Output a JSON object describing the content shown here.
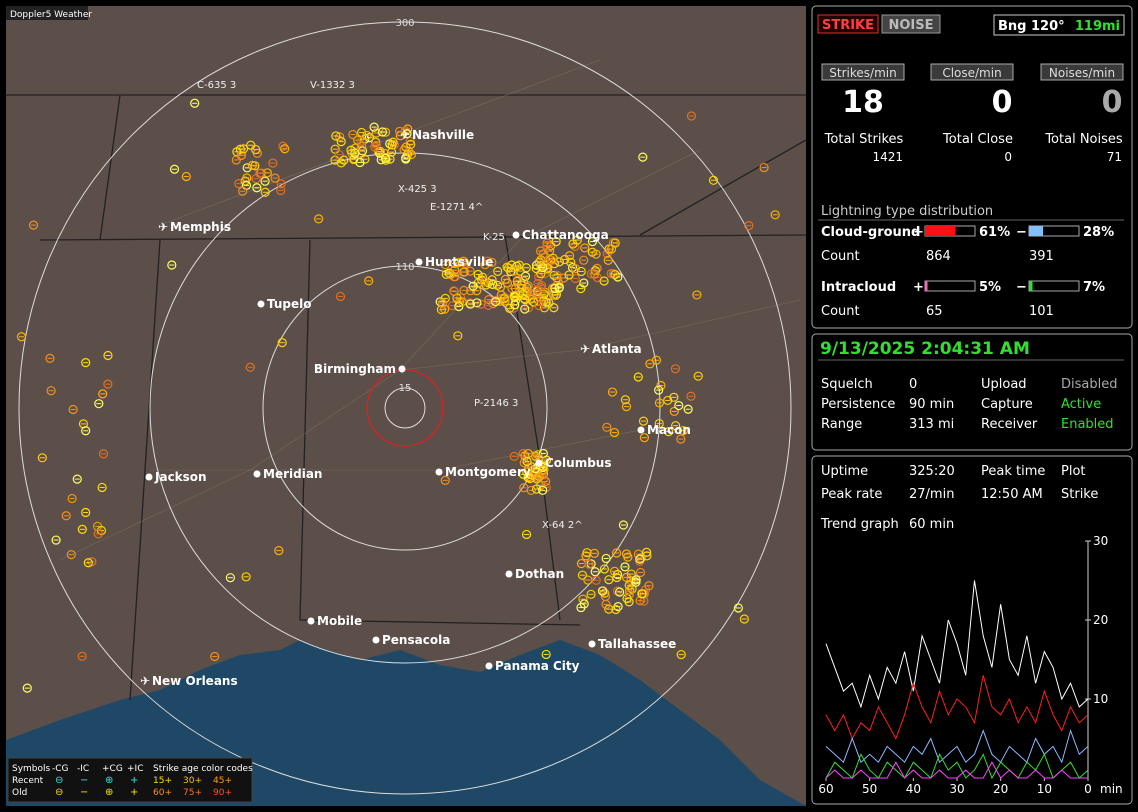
{
  "app_title": "Doppler5 Weather",
  "map": {
    "range_rings": [
      "15",
      "110",
      "300"
    ],
    "cities": [
      "Nashville",
      "Memphis",
      "Chattanooga",
      "Huntsville",
      "Tupelo",
      "Birmingham",
      "Atlanta",
      "Macon",
      "Jackson",
      "Meridian",
      "Montgomery",
      "Columbus",
      "Dothan",
      "Mobile",
      "Pensacola",
      "Tallahassee",
      "Panama City",
      "New Orleans"
    ],
    "strike_labels": [
      "C-635 3",
      "V-1332 3",
      "X-425 3",
      "E-1271 4^",
      "K-25",
      "P-2146 3",
      "X-64 2^"
    ],
    "legend": {
      "symbols_title": "Symbols",
      "symbol_types": [
        "-CG",
        "-IC",
        "+CG",
        "+IC"
      ],
      "age_title": "Strike age color codes",
      "rows": [
        "Recent",
        "Old"
      ],
      "ages": [
        [
          "15+",
          "30+",
          "45+"
        ],
        [
          "60+",
          "75+",
          "90+"
        ]
      ]
    }
  },
  "mode_buttons": [
    "STRIKE",
    "NOISE"
  ],
  "bearing": {
    "label": "Bng 120°",
    "distance": "119mi"
  },
  "rates": [
    {
      "button": "Strikes/min",
      "value": 18,
      "total_label": "Total Strikes",
      "total": 1421
    },
    {
      "button": "Close/min",
      "value": 0,
      "total_label": "Total Close",
      "total": 0
    },
    {
      "button": "Noises/min",
      "value": 0,
      "total_label": "Total Noises",
      "total": 71
    }
  ],
  "distribution": {
    "title": "Lightning type distribution",
    "count_label": "Count",
    "types": [
      {
        "name": "Cloud-ground",
        "plus_sign": "+",
        "minus_sign": "−",
        "plus": {
          "value": 61,
          "label": "61%"
        },
        "minus": {
          "value": 28,
          "label": "28%"
        },
        "plus_count": 864,
        "minus_count": 391
      },
      {
        "name": "Intracloud",
        "plus_sign": "+",
        "minus_sign": "−",
        "plus": {
          "value": 5,
          "label": "5%"
        },
        "minus": {
          "value": 7,
          "label": "7%"
        },
        "plus_count": 65,
        "minus_count": 101
      }
    ]
  },
  "status": {
    "datetime": "9/13/2025 2:04:31 AM",
    "rows": [
      [
        {
          "label": "Squelch",
          "value": "0"
        },
        {
          "label": "Upload",
          "value": "Disabled"
        }
      ],
      [
        {
          "label": "Persistence",
          "value": "90 min"
        },
        {
          "label": "Capture",
          "value": "Active"
        }
      ],
      [
        {
          "label": "Range",
          "value": "313 mi"
        },
        {
          "label": "Receiver",
          "value": "Enabled"
        }
      ]
    ]
  },
  "stats": {
    "rows": [
      [
        {
          "label": "Uptime",
          "value": "325:20"
        },
        {
          "label": "Peak time",
          "value": "Plot"
        }
      ],
      [
        {
          "label": "Peak rate",
          "value": "27/min"
        },
        {
          "label": "12:50 AM",
          "value": "Strike"
        }
      ]
    ],
    "trend_label": "Trend graph",
    "trend_span": "60 min"
  },
  "chart_data": {
    "type": "line",
    "x_label": "min",
    "x": [
      60,
      58,
      56,
      54,
      52,
      50,
      48,
      46,
      44,
      42,
      40,
      38,
      36,
      34,
      32,
      30,
      28,
      26,
      24,
      22,
      20,
      18,
      16,
      14,
      12,
      10,
      8,
      6,
      4,
      2,
      0
    ],
    "xlim": [
      60,
      0
    ],
    "xticks": [
      60,
      50,
      40,
      30,
      20,
      10,
      0
    ],
    "ylim": [
      0,
      30
    ],
    "yticks": [
      10,
      20,
      30
    ],
    "series": [
      {
        "color": "#ffffff",
        "values": [
          17,
          14,
          11,
          12,
          9,
          13,
          10,
          14,
          12,
          16,
          11,
          18,
          15,
          12,
          20,
          17,
          13,
          25,
          18,
          14,
          22,
          15,
          13,
          18,
          12,
          16,
          14,
          10,
          12,
          9,
          10
        ]
      },
      {
        "color": "#ff2020",
        "values": [
          8,
          6,
          8,
          5,
          7,
          6,
          9,
          7,
          5,
          8,
          12,
          9,
          7,
          11,
          8,
          10,
          9,
          7,
          13,
          9,
          8,
          10,
          7,
          9,
          7,
          11,
          8,
          6,
          9,
          7,
          8
        ]
      },
      {
        "color": "#8fb8ff",
        "values": [
          4,
          3,
          2,
          5,
          2,
          3,
          2,
          4,
          3,
          2,
          4,
          3,
          5,
          2,
          3,
          4,
          2,
          3,
          6,
          3,
          2,
          4,
          3,
          2,
          5,
          3,
          4,
          2,
          6,
          3,
          4
        ]
      },
      {
        "color": "#30e030",
        "values": [
          0,
          2,
          1,
          0,
          3,
          1,
          0,
          2,
          1,
          0,
          2,
          1,
          0,
          3,
          1,
          2,
          0,
          1,
          3,
          0,
          2,
          1,
          0,
          2,
          1,
          3,
          0,
          1,
          2,
          0,
          1
        ]
      },
      {
        "color": "#ff40ff",
        "values": [
          0,
          1,
          0,
          0,
          1,
          0,
          0,
          0,
          2,
          0,
          1,
          0,
          0,
          1,
          0,
          0,
          1,
          0,
          0,
          2,
          0,
          1,
          0,
          0,
          1,
          0,
          0,
          1,
          0,
          0,
          0
        ]
      }
    ]
  }
}
